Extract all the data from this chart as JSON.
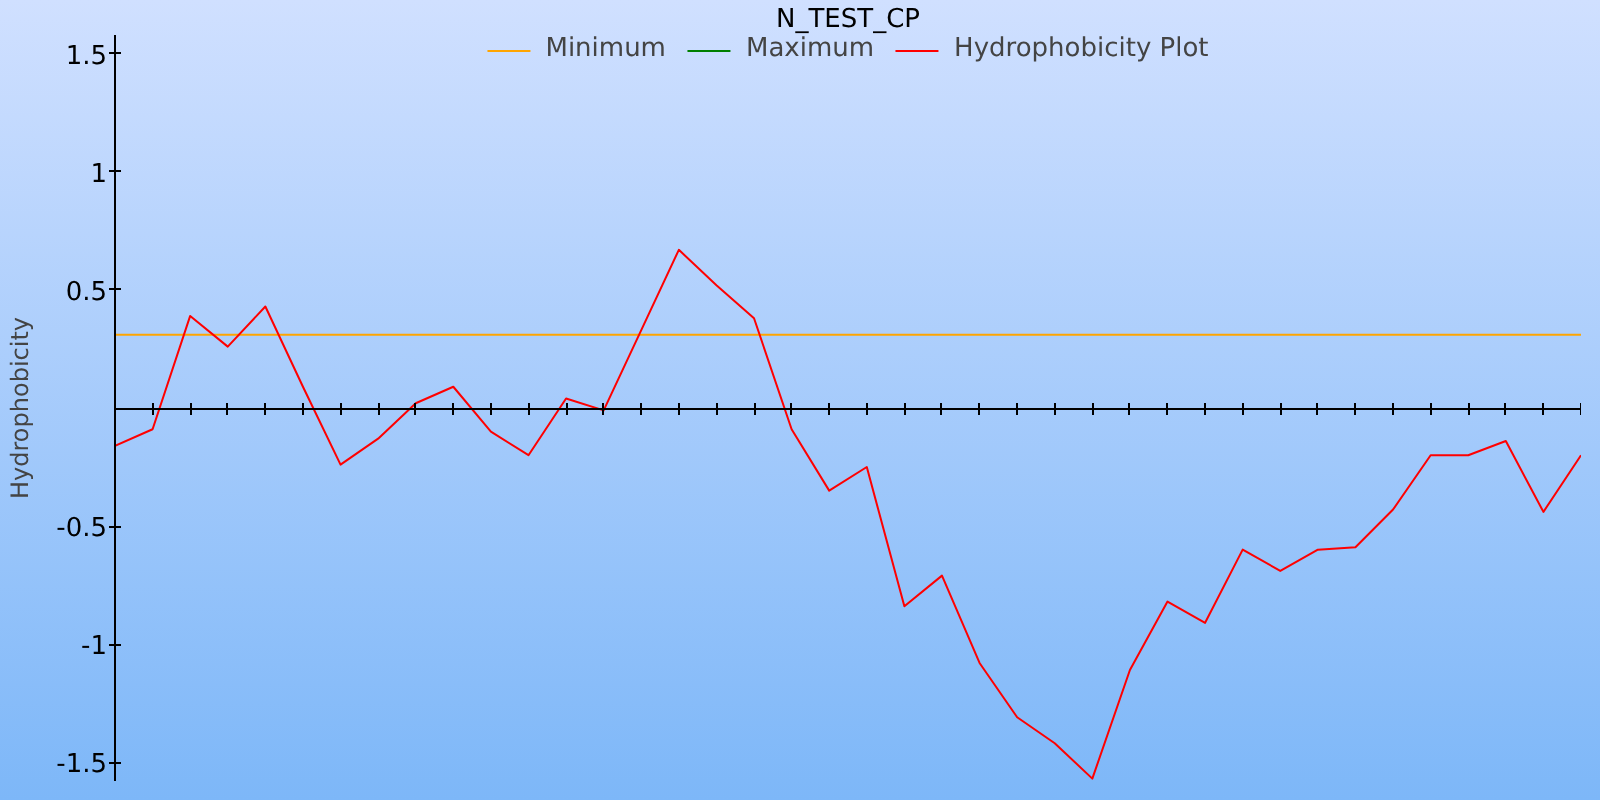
{
  "chart_data": {
    "type": "line",
    "title": "N_TEST_CP",
    "ylabel": "Hydrophobicity",
    "categories": [
      null,
      null,
      null,
      null,
      null,
      null,
      null,
      null,
      null,
      null,
      null,
      null,
      null,
      null,
      null,
      null,
      null,
      null,
      null,
      null,
      null,
      null,
      null,
      null,
      null,
      null,
      null,
      null,
      null,
      null,
      null,
      null,
      null,
      null,
      null,
      null,
      null,
      null,
      null,
      null
    ],
    "series": [
      {
        "name": "Minimum",
        "color": "#ffa500",
        "values": [
          0.31,
          0.31,
          0.31,
          0.31,
          0.31,
          0.31,
          0.31,
          0.31,
          0.31,
          0.31,
          0.31,
          0.31,
          0.31,
          0.31,
          0.31,
          0.31,
          0.31,
          0.31,
          0.31,
          0.31,
          0.31,
          0.31,
          0.31,
          0.31,
          0.31,
          0.31,
          0.31,
          0.31,
          0.31,
          0.31,
          0.31,
          0.31,
          0.31,
          0.31,
          0.31,
          0.31,
          0.31,
          0.31,
          0.31,
          0.31
        ]
      },
      {
        "name": "Maximum",
        "color": "#008000",
        "values": [
          null,
          null,
          null,
          null,
          null,
          null,
          null,
          null,
          null,
          null,
          null,
          null,
          null,
          null,
          null,
          null,
          null,
          null,
          null,
          null,
          null,
          null,
          null,
          null,
          null,
          null,
          null,
          null,
          null,
          null,
          null,
          null,
          null,
          null,
          null,
          null,
          null,
          null,
          null,
          null
        ]
      },
      {
        "name": "Hydrophobicity Plot",
        "color": "#ff0000",
        "values": [
          -0.16,
          -0.09,
          0.39,
          0.26,
          0.43,
          0.09,
          -0.24,
          -0.13,
          0.02,
          0.09,
          -0.1,
          -0.2,
          0.04,
          -0.01,
          0.33,
          0.67,
          0.52,
          0.38,
          -0.09,
          -0.35,
          -0.25,
          -0.84,
          -0.71,
          -1.08,
          -1.31,
          -1.42,
          -1.57,
          -1.11,
          -0.82,
          -0.91,
          -0.6,
          -0.69,
          -0.6,
          -0.59,
          -0.43,
          -0.2,
          -0.2,
          -0.14,
          -0.44,
          -0.2
        ]
      }
    ],
    "ylim": [
      -1.58,
      1.58
    ],
    "yticks": [
      -1.5,
      -1,
      -0.5,
      0.5,
      1,
      1.5
    ],
    "tick_labels": "y",
    "legend": "top",
    "marker": "none",
    "line_style": "solid"
  }
}
